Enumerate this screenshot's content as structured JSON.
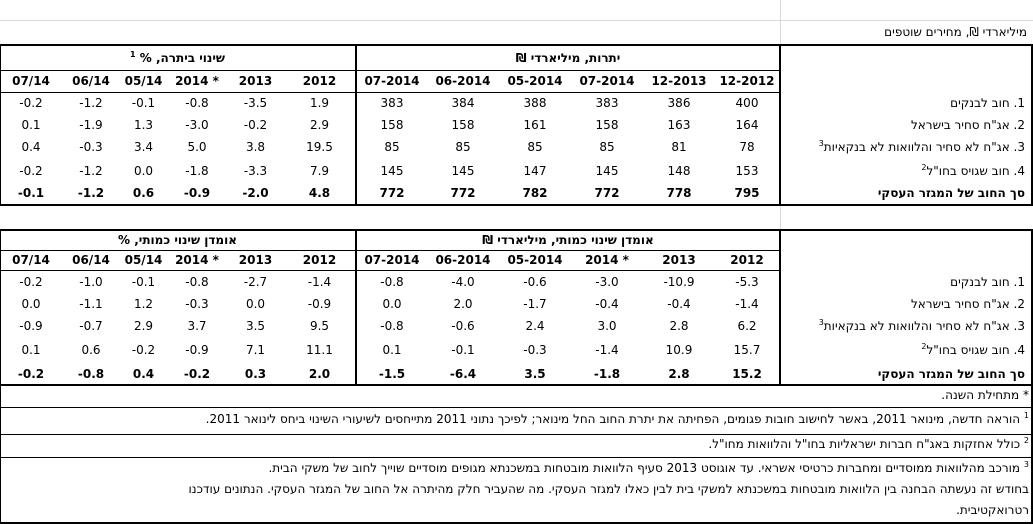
{
  "unit_caption": "מיליארדי ₪, מחירים שוטפים",
  "top": {
    "stocks_title": "יתרות, מיליארדי ₪",
    "change_title": "שינוי ביתרה, %",
    "change_title_sup": "1",
    "stock_headers": [
      "12-2012",
      "12-2013",
      "07-2014",
      "05-2014",
      "06-2014",
      "07-2014"
    ],
    "change_headers": [
      "2012",
      "2013",
      "2014 *",
      "05/14",
      "06/14",
      "07/14"
    ],
    "rows": [
      {
        "label": "1. חוב לבנקים",
        "sup": "",
        "stocks": [
          "400",
          "386",
          "383",
          "388",
          "384",
          "383"
        ],
        "changes": [
          "1.9",
          "-3.5",
          "-0.8",
          "-0.1",
          "-1.2",
          "-0.2"
        ]
      },
      {
        "label": "2. אג\"ח סחיר בישראל",
        "sup": "",
        "stocks": [
          "164",
          "163",
          "158",
          "161",
          "158",
          "158"
        ],
        "changes": [
          "2.9",
          "-0.2",
          "-3.0",
          "1.3",
          "-1.9",
          "0.1"
        ]
      },
      {
        "label": "3. אג\"ח לא סחיר והלוואות לא בנקאיות",
        "sup": "3",
        "stocks": [
          "78",
          "81",
          "85",
          "85",
          "85",
          "85"
        ],
        "changes": [
          "19.5",
          "3.8",
          "5.0",
          "3.4",
          "-0.3",
          "0.4"
        ]
      },
      {
        "label": "4. חוב שגויס בחו\"ל",
        "sup": "2",
        "stocks": [
          "153",
          "148",
          "145",
          "147",
          "145",
          "145"
        ],
        "changes": [
          "7.9",
          "-3.3",
          "-1.8",
          "0.0",
          "-1.2",
          "-0.2"
        ]
      }
    ],
    "total": {
      "label": "סך החוב של המגזר העסקי",
      "stocks": [
        "795",
        "778",
        "772",
        "782",
        "772",
        "772"
      ],
      "changes": [
        "4.8",
        "-2.0",
        "-0.9",
        "0.6",
        "-1.2",
        "-0.1"
      ]
    }
  },
  "bottom": {
    "left_title": "אומדן שינוי כמותי, מיליארדי ₪",
    "right_title": "אומדן שינוי כמותי, %",
    "left_headers": [
      "2012",
      "2013",
      "2014 *",
      "05-2014",
      "06-2014",
      "07-2014"
    ],
    "right_headers": [
      "2012",
      "2013",
      "2014 *",
      "05/14",
      "06/14",
      "07/14"
    ],
    "rows": [
      {
        "label": "1. חוב לבנקים",
        "sup": "",
        "abs": [
          "-5.3",
          "-10.9",
          "-3.0",
          "-0.6",
          "-4.0",
          "-0.8"
        ],
        "pct": [
          "-1.4",
          "-2.7",
          "-0.8",
          "-0.1",
          "-1.0",
          "-0.2"
        ]
      },
      {
        "label": "2. אג\"ח סחיר בישראל",
        "sup": "",
        "abs": [
          "-1.4",
          "-0.4",
          "-0.4",
          "-1.7",
          "2.0",
          "0.0"
        ],
        "pct": [
          "-0.9",
          "0.0",
          "-0.3",
          "1.2",
          "-1.1",
          "0.0"
        ]
      },
      {
        "label": "3. אג\"ח לא סחיר והלוואות לא בנקאיות",
        "sup": "3",
        "abs": [
          "6.2",
          "2.8",
          "3.0",
          "2.4",
          "-0.6",
          "-0.8"
        ],
        "pct": [
          "9.5",
          "3.5",
          "3.7",
          "2.9",
          "-0.7",
          "-0.9"
        ]
      },
      {
        "label": "4. חוב שגויס בחו\"ל",
        "sup": "2",
        "abs": [
          "15.7",
          "10.9",
          "-1.4",
          "-0.3",
          "-0.1",
          "0.1"
        ],
        "pct": [
          "11.1",
          "7.1",
          "-0.9",
          "-0.2",
          "0.6",
          "0.1"
        ]
      }
    ],
    "total": {
      "label": "סך החוב של המגזר העסקי",
      "abs": [
        "15.2",
        "2.8",
        "-1.8",
        "3.5",
        "-6.4",
        "-1.5"
      ],
      "pct": [
        "2.0",
        "0.3",
        "-0.2",
        "0.4",
        "-0.8",
        "-0.2"
      ]
    }
  },
  "notes": {
    "star": "* מתחילת השנה.",
    "n1_sup": "1",
    "n1": "הוראה חדשה, מינואר 2011, באשר לחישוב חובות פגומים, הפחיתה את יתרת החוב החל מינואר; לפיכך נתוני 2011 מתייחסים לשיעורי השינוי ביחס לינואר 2011.",
    "n2_sup": "2",
    "n2": "כולל אחזקות באג\"ח חברות ישראליות בחו\"ל והלוואות מחו\"ל.",
    "n3_sup": "3",
    "n3": "מורכב מהלוואות ממוסדיים ומחברות כרטיסי אשראי. עד אוגוסט 2013 סעיף הלוואות מובטחות במשכנתא מגופים מוסדיים שוייך לחוב של משקי הבית.",
    "n4a": "בחודש זה נעשתה הבחנה בין הלוואות מובטחות במשכנתא למשקי בית לבין כאלו למגזר העסקי. מה שהעביר חלק מהיתרה אל החוב של המגזר העסקי. הנתונים עודכנו",
    "n4b": "רטרואקטיבית."
  }
}
